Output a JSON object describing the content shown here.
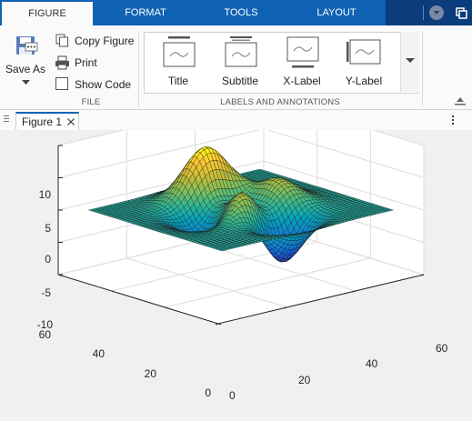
{
  "tabs": [
    {
      "label": "FIGURE",
      "active": true
    },
    {
      "label": "FORMAT",
      "active": false
    },
    {
      "label": "TOOLS",
      "active": false
    },
    {
      "label": "LAYOUT",
      "active": false
    }
  ],
  "file_group": {
    "label": "FILE",
    "save_as": "Save As",
    "copy_figure": "Copy Figure",
    "print": "Print",
    "show_code": "Show Code"
  },
  "labels_group": {
    "label": "LABELS AND ANNOTATIONS",
    "items": [
      "Title",
      "Subtitle",
      "X-Label",
      "Y-Label"
    ]
  },
  "document_tab": {
    "label": "Figure 1"
  },
  "chart_data": {
    "type": "surface",
    "function": "peaks",
    "x_ticks": [
      "0",
      "20",
      "40",
      "60"
    ],
    "y_ticks": [
      "0",
      "20",
      "40",
      "60"
    ],
    "z_ticks": [
      "10",
      "5",
      "0",
      "-5",
      "-10"
    ],
    "xlim": [
      0,
      60
    ],
    "ylim": [
      0,
      60
    ],
    "zlim": [
      -10,
      10
    ],
    "grid": true,
    "colormap": "parula"
  }
}
